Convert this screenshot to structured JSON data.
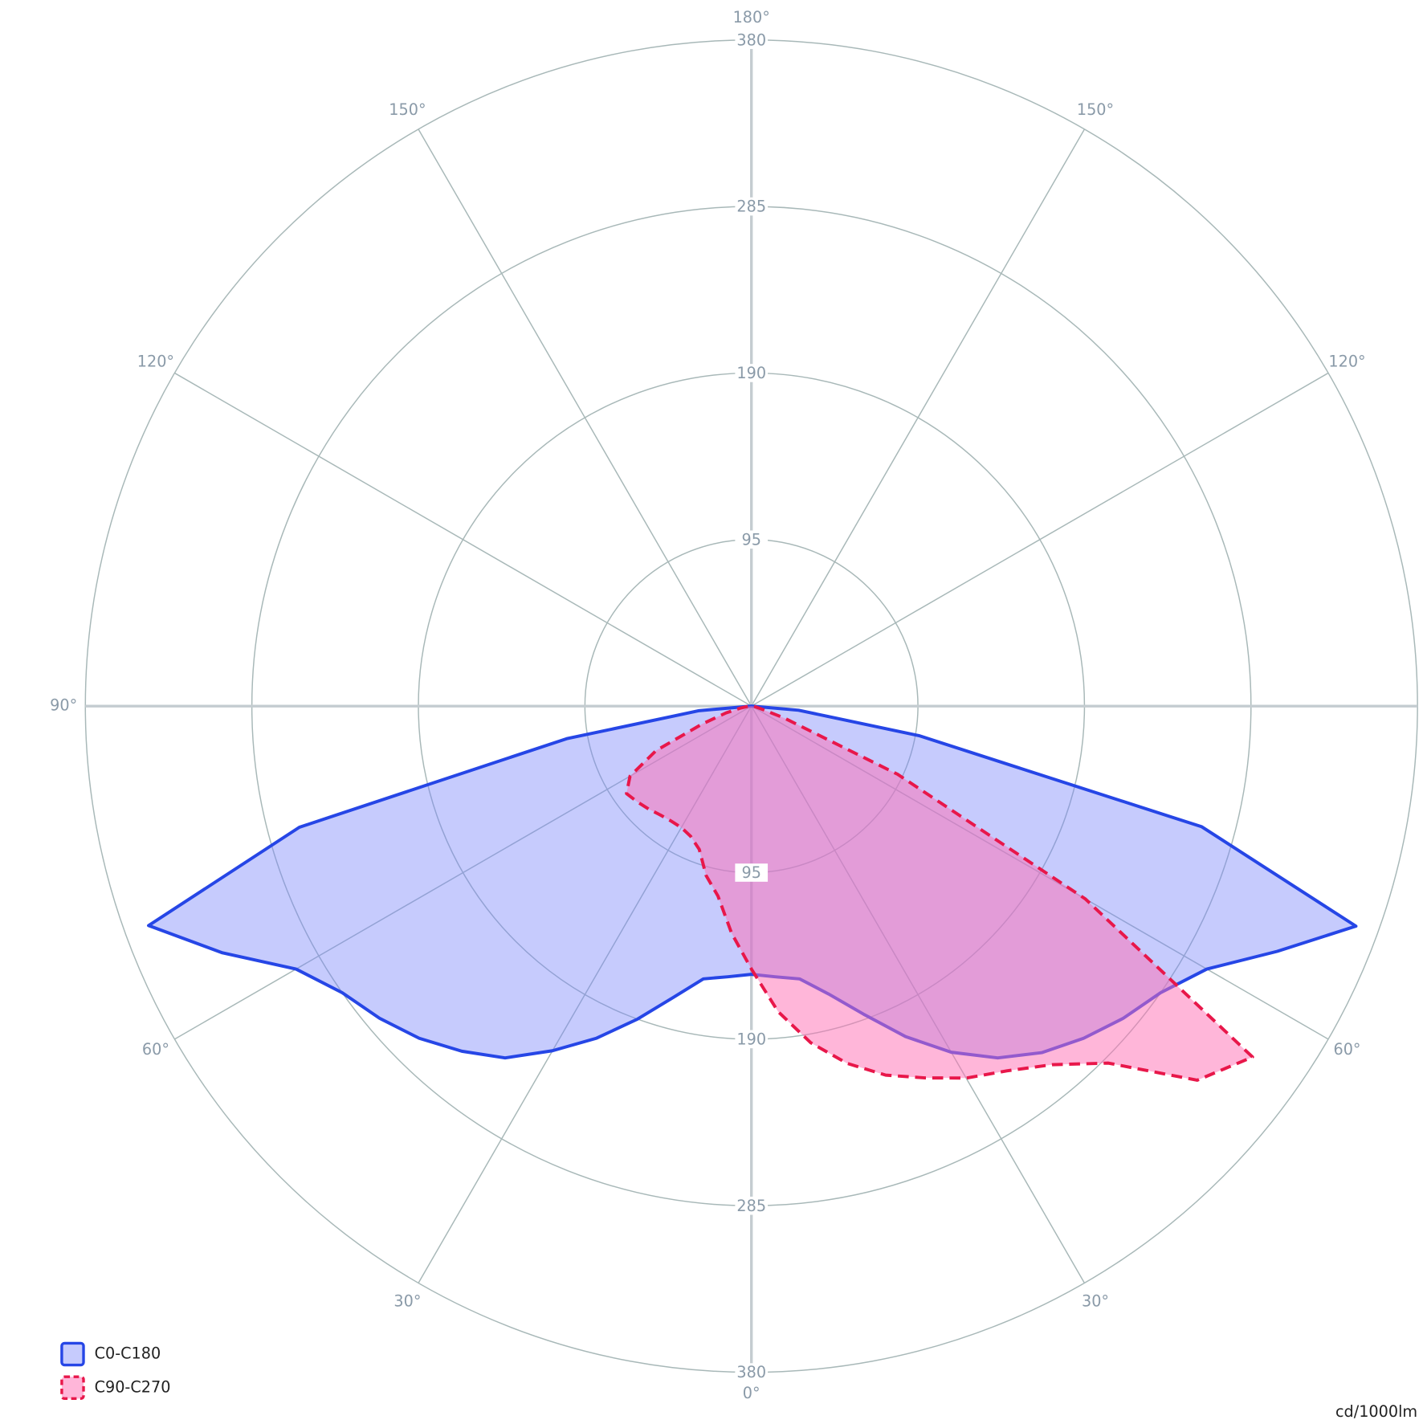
{
  "chart_data": {
    "type": "polar",
    "unit": "cd/1000lm",
    "rlim": [
      0,
      380
    ],
    "rticks": [
      95,
      190,
      285,
      380
    ],
    "angle_ticks": [
      {
        "value": 0,
        "label": "0°"
      },
      {
        "value": 30,
        "label": "30°"
      },
      {
        "value": 60,
        "label": "60°"
      },
      {
        "value": 90,
        "label": "90°"
      },
      {
        "value": 120,
        "label": "120°"
      },
      {
        "value": 150,
        "label": "150°"
      },
      {
        "value": 180,
        "label": "180°"
      }
    ],
    "legend": "bottom-left",
    "gamma": [
      0,
      5,
      10,
      15,
      20,
      25,
      30,
      35,
      40,
      45,
      50,
      55,
      60,
      65,
      70,
      75,
      80,
      85,
      90
    ],
    "series": [
      {
        "name": "C0-C180",
        "color": "#2646e6",
        "fill": "rgba(120,130,250,0.42)",
        "dashed": false,
        "right_values": [
          153,
          155,
          158,
          170,
          187,
          208,
          228,
          245,
          258,
          268,
          277,
          285,
          300,
          331,
          367,
          266,
          97,
          27,
          0
        ],
        "left_values": [
          153,
          155,
          158,
          172,
          190,
          209,
          227,
          245,
          257,
          268,
          277,
          285,
          300,
          333,
          366,
          267,
          107,
          30,
          0
        ]
      },
      {
        "name": "C90-C270",
        "color": "#e8174a",
        "fill": "rgba(255,110,180,0.5)",
        "dashed": true,
        "right_values": [
          150,
          175,
          195,
          211,
          224,
          234,
          245,
          254,
          267,
          288,
          332,
          349,
          220,
          92,
          20,
          5,
          2,
          1,
          0
        ],
        "left_values": [
          150,
          130,
          110,
          100,
          87,
          82,
          80,
          80,
          81,
          83,
          85,
          87,
          80,
          60,
          30,
          15,
          6,
          2,
          0
        ]
      }
    ]
  }
}
